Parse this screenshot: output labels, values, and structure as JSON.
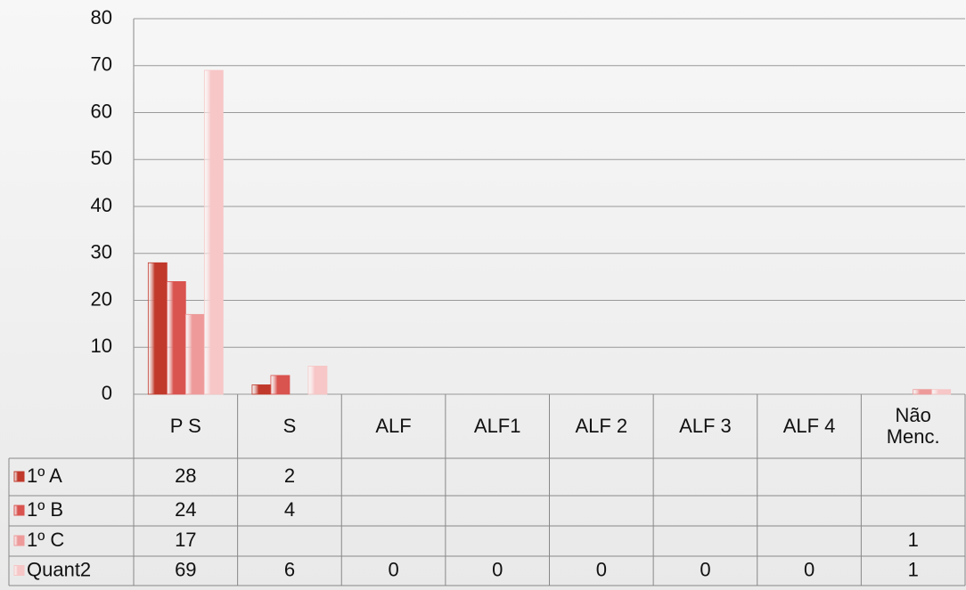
{
  "chart_data": {
    "type": "bar",
    "categories": [
      "P S",
      "S",
      "ALF",
      "ALF1",
      "ALF 2",
      "ALF 3",
      "ALF 4",
      "Não\nMenc."
    ],
    "series": [
      {
        "name": "1º A",
        "color": "#c0392b",
        "values": [
          28,
          2,
          null,
          null,
          null,
          null,
          null,
          null
        ]
      },
      {
        "name": "1º B",
        "color": "#d9534f",
        "values": [
          24,
          4,
          null,
          null,
          null,
          null,
          null,
          null
        ]
      },
      {
        "name": "1º C",
        "color": "#ee9a9a",
        "values": [
          17,
          null,
          null,
          null,
          null,
          null,
          null,
          1
        ]
      },
      {
        "name": "Quant2",
        "color": "#f7c6c6",
        "values": [
          69,
          6,
          0,
          0,
          0,
          0,
          0,
          1
        ]
      }
    ],
    "ylim": [
      0,
      80
    ],
    "yticks": [
      0,
      10,
      20,
      30,
      40,
      50,
      60,
      70,
      80
    ],
    "grid": true,
    "data_table": true
  }
}
